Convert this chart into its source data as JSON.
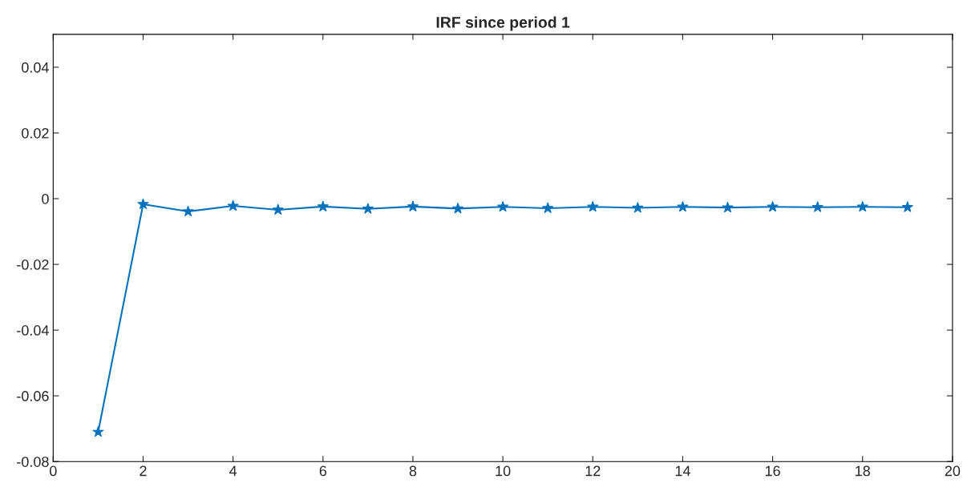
{
  "chart_data": {
    "type": "line",
    "title": "IRF since period 1",
    "x": [
      1,
      2,
      3,
      4,
      5,
      6,
      7,
      8,
      9,
      10,
      11,
      12,
      13,
      14,
      15,
      16,
      17,
      18,
      19
    ],
    "series": [
      {
        "color": "#0072bd",
        "values": [
          -0.071,
          -0.0017,
          -0.0039,
          -0.0022,
          -0.0034,
          -0.0024,
          -0.0031,
          -0.0024,
          -0.003,
          -0.0025,
          -0.0029,
          -0.0025,
          -0.0028,
          -0.0025,
          -0.0027,
          -0.0025,
          -0.0026,
          -0.0025,
          -0.0026
        ]
      }
    ],
    "xlim": [
      0,
      20
    ],
    "xticks": [
      0,
      2,
      4,
      6,
      8,
      10,
      12,
      14,
      16,
      18,
      20
    ],
    "ylim": [
      -0.08,
      0.05
    ],
    "yticks": [
      -0.08,
      -0.06,
      -0.04,
      -0.02,
      {
        "value": 0,
        "label": "0"
      },
      0.02,
      0.04
    ],
    "marker": "star",
    "line_style": "solid",
    "grid": false,
    "legend": false
  }
}
